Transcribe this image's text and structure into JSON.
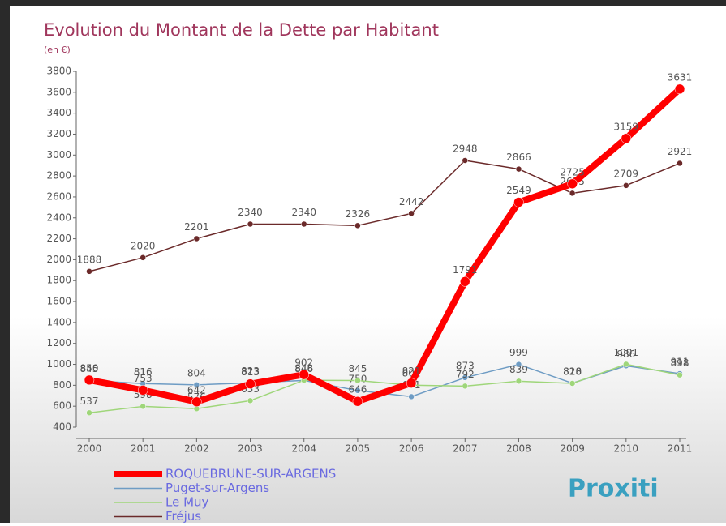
{
  "chart_data": {
    "type": "line",
    "title": "Evolution du Montant de la Dette par Habitant",
    "subtitle": "(en €)",
    "categories": [
      "2000",
      "2001",
      "2002",
      "2003",
      "2004",
      "2005",
      "2006",
      "2007",
      "2008",
      "2009",
      "2010",
      "2011"
    ],
    "series": [
      {
        "name": "ROQUEBRUNE-SUR-ARGENS",
        "color": "#ff0000",
        "width": 8,
        "values": [
          850,
          753,
          642,
          813,
          902,
          646,
          821,
          1791,
          2549,
          2725,
          3159,
          3631
        ]
      },
      {
        "name": "Puget-sur-Argens",
        "color": "#6e9cc4",
        "width": 1.5,
        "values": [
          845,
          816,
          804,
          823,
          846,
          750,
          691,
          873,
          999,
          820,
          986,
          911
        ]
      },
      {
        "name": "Le Muy",
        "color": "#9fd67a",
        "width": 1.5,
        "values": [
          537,
          598,
          576,
          653,
          848,
          845,
          801,
          792,
          839,
          818,
          1001,
          898
        ]
      },
      {
        "name": "Fréjus",
        "color": "#6b2a2a",
        "width": 1.5,
        "values": [
          1888,
          2020,
          2201,
          2340,
          2340,
          2326,
          2442,
          2948,
          2866,
          2635,
          2709,
          2921
        ]
      }
    ],
    "ylim": [
      400,
      3800
    ],
    "yticks": [
      400,
      600,
      800,
      1000,
      1200,
      1400,
      1600,
      1800,
      2000,
      2200,
      2400,
      2600,
      2800,
      3000,
      3200,
      3400,
      3600,
      3800
    ],
    "logo": "Proxiti"
  }
}
